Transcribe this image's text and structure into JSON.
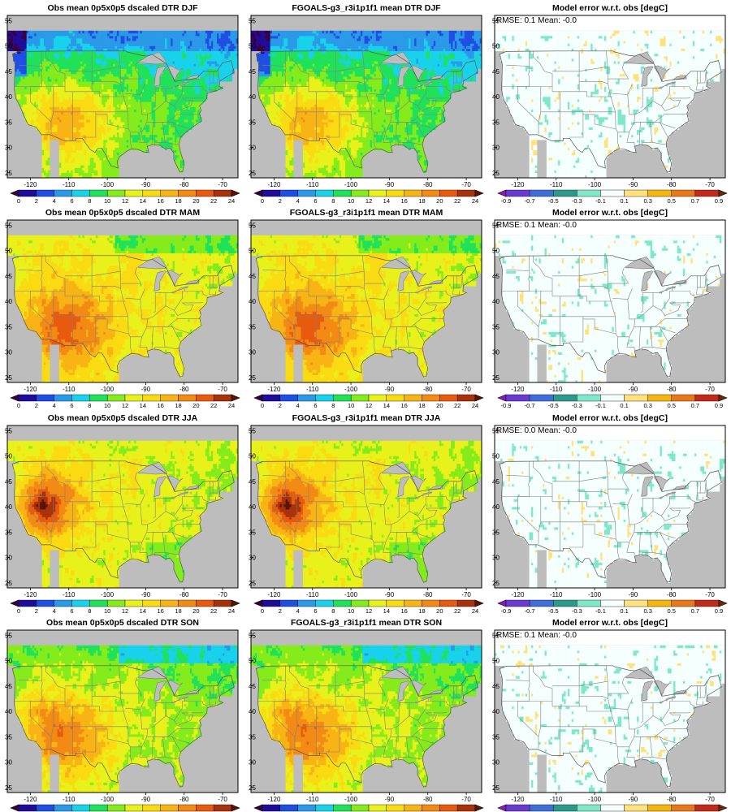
{
  "figure": {
    "rows": [
      {
        "season": "DJF",
        "panels": [
          {
            "title": "Obs mean 0p5x0p5 dscaled DTR DJF",
            "kind": "obs"
          },
          {
            "title": "FGOALS-g3_r3i1p1f1 mean DTR DJF",
            "kind": "model"
          },
          {
            "title": "Model error w.r.t. obs [degC]",
            "kind": "error",
            "stats": "RMSE: 0.1  Mean: -0.0"
          }
        ]
      },
      {
        "season": "MAM",
        "panels": [
          {
            "title": "Obs mean 0p5x0p5 dscaled DTR MAM",
            "kind": "obs"
          },
          {
            "title": "FGOALS-g3_r3i1p1f1 mean DTR MAM",
            "kind": "model"
          },
          {
            "title": "Model error w.r.t. obs [degC]",
            "kind": "error",
            "stats": "RMSE: 0.1  Mean: -0.0"
          }
        ]
      },
      {
        "season": "JJA",
        "panels": [
          {
            "title": "Obs mean 0p5x0p5 dscaled DTR JJA",
            "kind": "obs"
          },
          {
            "title": "FGOALS-g3_r3i1p1f1 mean DTR JJA",
            "kind": "model"
          },
          {
            "title": "Model error w.r.t. obs [degC]",
            "kind": "error",
            "stats": "RMSE: 0.0  Mean: -0.0"
          }
        ]
      },
      {
        "season": "SON",
        "panels": [
          {
            "title": "Obs mean 0p5x0p5 dscaled DTR SON",
            "kind": "obs"
          },
          {
            "title": "FGOALS-g3_r3i1p1f1 mean DTR SON",
            "kind": "model"
          },
          {
            "title": "Model error w.r.t. obs [degC]",
            "kind": "error",
            "stats": "RMSE: 0.1  Mean: -0.0"
          }
        ]
      }
    ],
    "lon_ticks": [
      -120,
      -110,
      -100,
      -90,
      -80,
      -70
    ],
    "lat_ticks": [
      25,
      30,
      35,
      40,
      45,
      50,
      55
    ],
    "lon_range": [
      -126,
      -66
    ],
    "lat_range": [
      24,
      56
    ],
    "data_lat_max": 53,
    "colorbars": {
      "value": {
        "labels": [
          "0",
          "2",
          "4",
          "6",
          "8",
          "10",
          "12",
          "14",
          "16",
          "18",
          "20",
          "22",
          "24"
        ],
        "colors": [
          "#3a0040",
          "#1f0c9a",
          "#1e4fe2",
          "#2a9ae8",
          "#18d2ec",
          "#20e25a",
          "#84ec1a",
          "#e8f21a",
          "#fadb12",
          "#f8b314",
          "#f38a14",
          "#e85a0e",
          "#a8320a",
          "#5a1406"
        ]
      },
      "error": {
        "labels": [
          "-0.9",
          "-0.7",
          "-0.5",
          "-0.3",
          "-0.1",
          "0.1",
          "0.3",
          "0.5",
          "0.7",
          "0.9"
        ],
        "colors": [
          "#8a1ac0",
          "#6a3ad0",
          "#3f6ed8",
          "#2a9a8a",
          "#7fe8c8",
          "#f4fffe",
          "#ffe27a",
          "#f5b50e",
          "#e8781a",
          "#c22a1a",
          "#6a2a0a"
        ]
      }
    },
    "land_mask_color": "#bdbdbd"
  }
}
